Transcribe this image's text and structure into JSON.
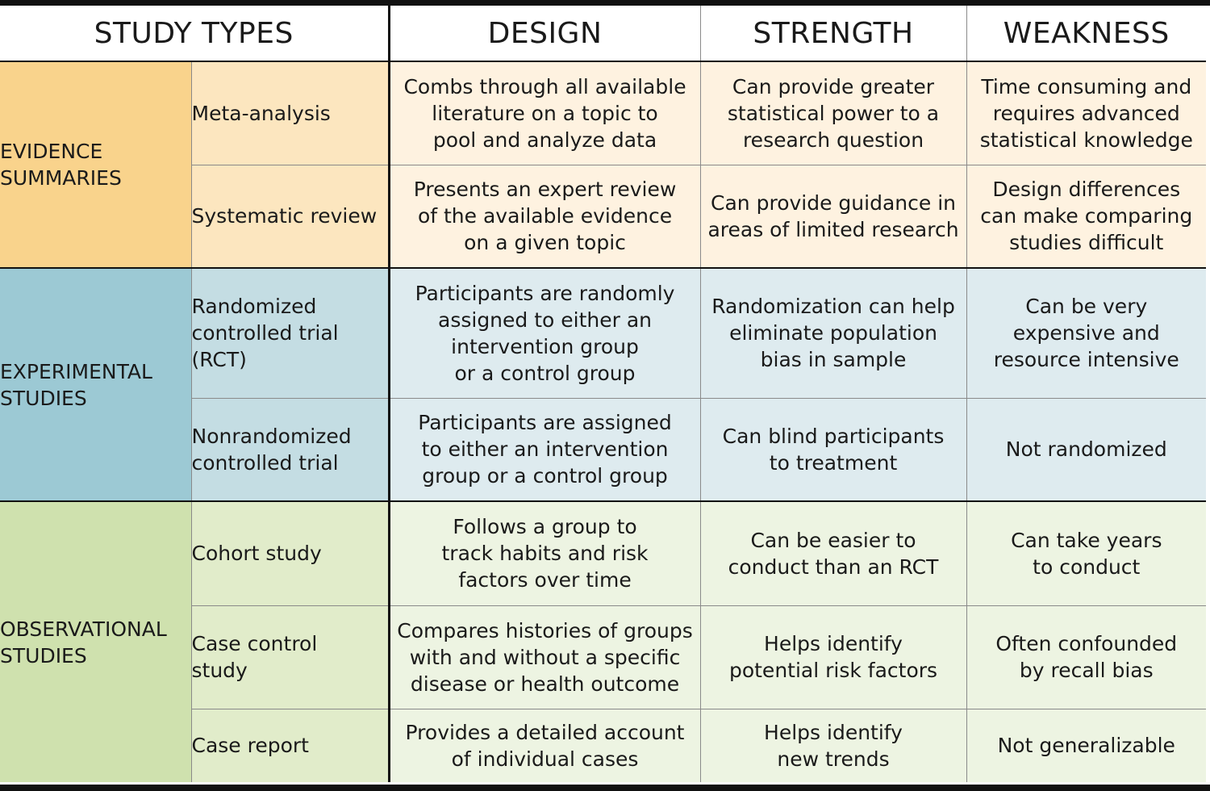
{
  "header": {
    "study_types": "STUDY TYPES",
    "design": "DESIGN",
    "strength": "STRENGTH",
    "weakness": "WEAKNESS"
  },
  "sections": {
    "evidence": {
      "name_lines": [
        "EVIDENCE",
        "SUMMARIES"
      ],
      "color": "#f9d38c",
      "rows": [
        {
          "type_lines": [
            "Meta-analysis"
          ],
          "design_lines": [
            "Combs through all available",
            "literature on a topic to",
            "pool and analyze data"
          ],
          "strength_lines": [
            "Can provide greater",
            "statistical power to a",
            "research question"
          ],
          "weakness_lines": [
            "Time consuming and",
            "requires advanced",
            "statistical knowledge"
          ]
        },
        {
          "type_lines": [
            "Systematic review"
          ],
          "design_lines": [
            "Presents an expert review",
            "of the available evidence",
            "on a given topic"
          ],
          "strength_lines": [
            "Can provide guidance in",
            "areas of limited research"
          ],
          "weakness_lines": [
            "Design differences",
            "can make comparing",
            "studies difficult"
          ]
        }
      ]
    },
    "experimental": {
      "name_lines": [
        "EXPERIMENTAL",
        "STUDIES"
      ],
      "color": "#9cc9d4",
      "rows": [
        {
          "type_lines": [
            "Randomized",
            "controlled trial",
            "(RCT)"
          ],
          "design_lines": [
            "Participants are randomly",
            "assigned to either an",
            "intervention  group",
            "or a control group"
          ],
          "strength_lines": [
            "Randomization can help",
            "eliminate population",
            "bias in sample"
          ],
          "weakness_lines": [
            "Can be very",
            "expensive and",
            "resource intensive"
          ]
        },
        {
          "type_lines": [
            "Nonrandomized",
            "controlled trial"
          ],
          "design_lines": [
            "Participants are assigned",
            "to either an intervention",
            "group or a control group"
          ],
          "strength_lines": [
            "Can blind participants",
            "to treatment"
          ],
          "weakness_lines": [
            "Not randomized"
          ]
        }
      ]
    },
    "observational": {
      "name_lines": [
        "OBSERVATIONAL",
        "STUDIES"
      ],
      "color": "#cfe1ae",
      "rows": [
        {
          "type_lines": [
            "Cohort study"
          ],
          "design_lines": [
            "Follows a group to",
            "track habits and risk",
            "factors over time"
          ],
          "strength_lines": [
            "Can be easier to",
            "conduct than an RCT"
          ],
          "weakness_lines": [
            "Can take years",
            "to conduct"
          ]
        },
        {
          "type_lines": [
            "Case control",
            "study"
          ],
          "design_lines": [
            "Compares histories of groups",
            "with and without a specific",
            "disease or health outcome"
          ],
          "strength_lines": [
            "Helps identify",
            "potential risk factors"
          ],
          "weakness_lines": [
            "Often confounded",
            "by recall bias"
          ]
        },
        {
          "type_lines": [
            "Case report"
          ],
          "design_lines": [
            "Provides a detailed account",
            "of individual cases"
          ],
          "strength_lines": [
            "Helps identify",
            "new trends"
          ],
          "weakness_lines": [
            "Not generalizable"
          ]
        }
      ]
    }
  }
}
